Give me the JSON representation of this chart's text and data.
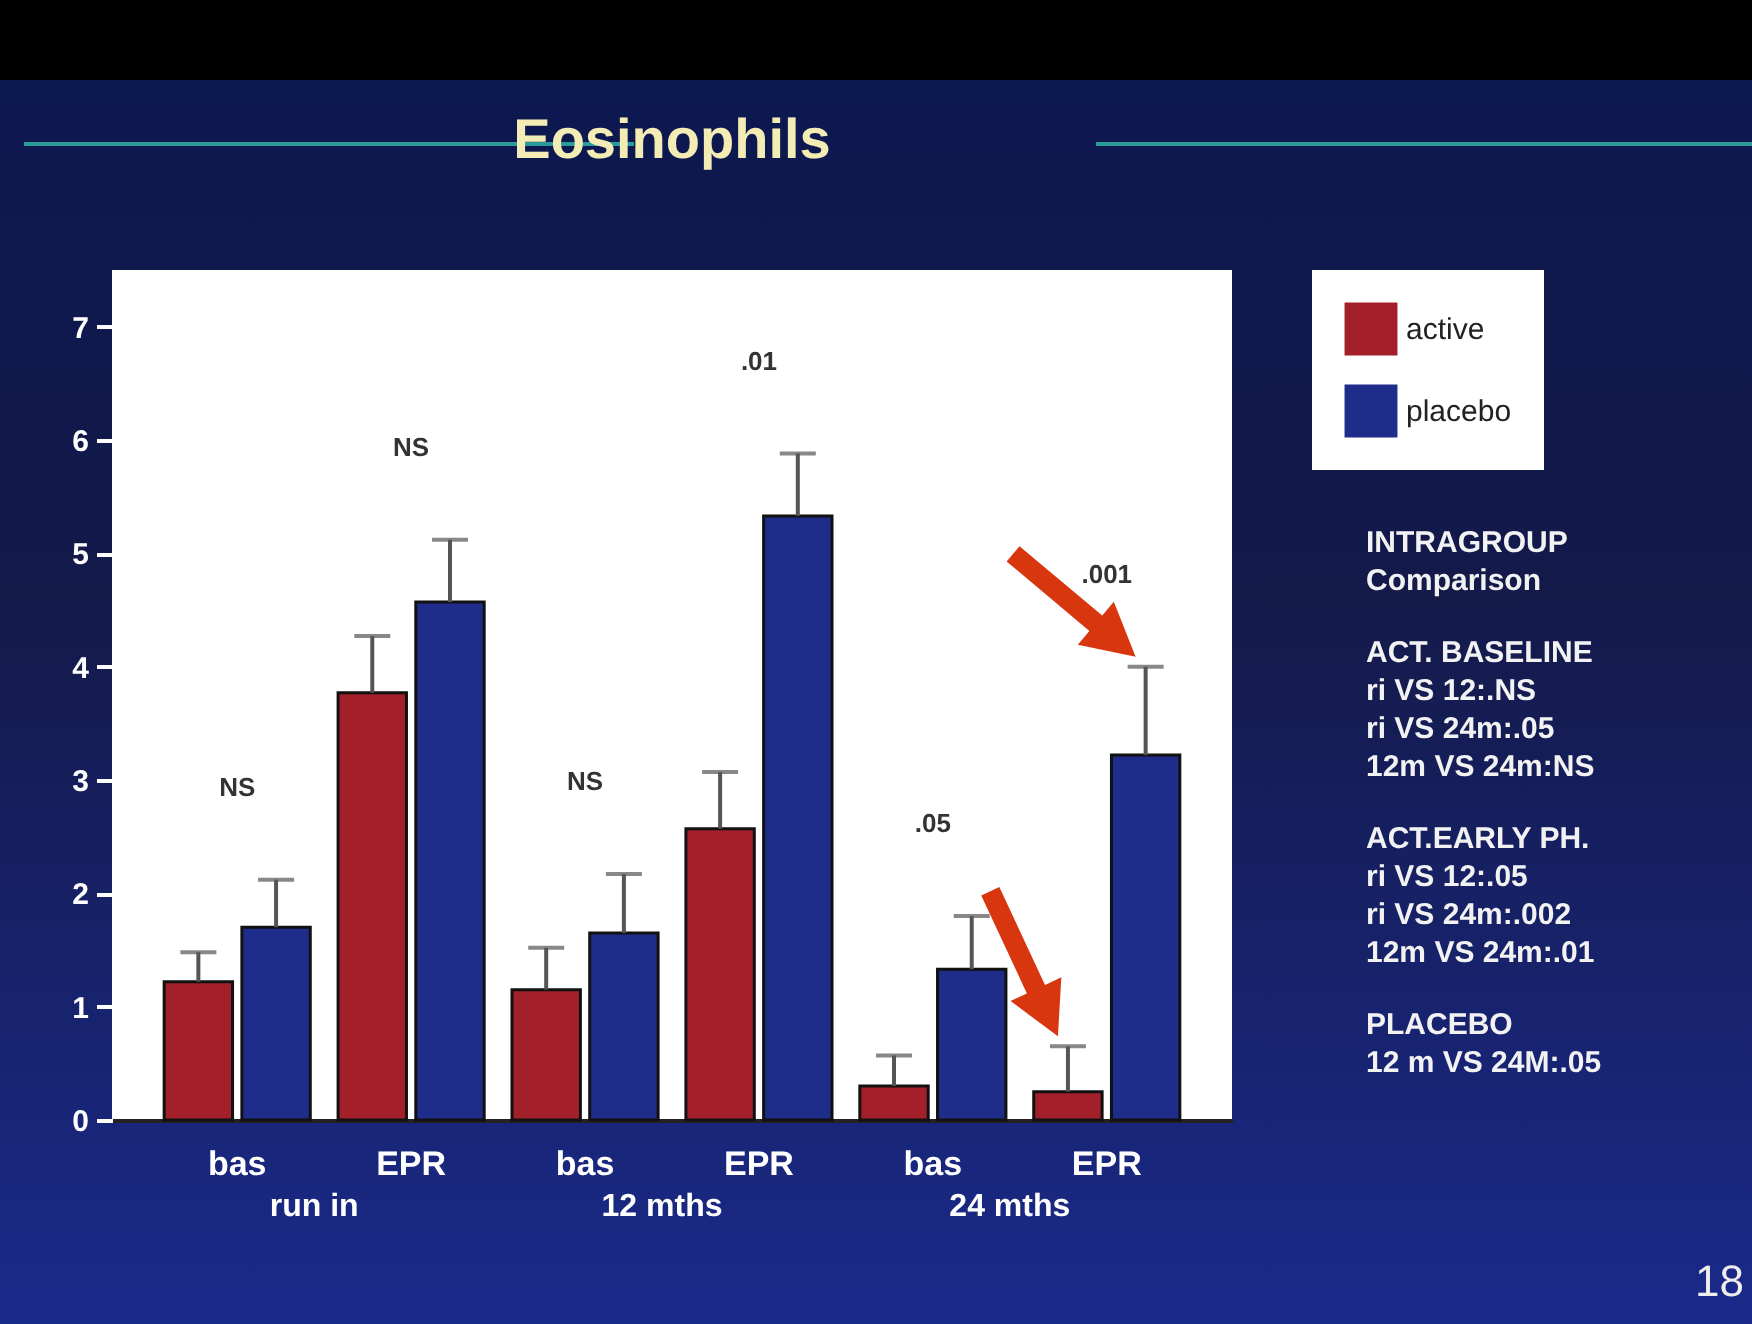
{
  "chart_data": {
    "type": "bar",
    "title": "Eosinophils",
    "categories": [
      "bas",
      "EPR",
      "bas",
      "EPR",
      "bas",
      "EPR"
    ],
    "series": [
      {
        "name": "active",
        "color": "#a3202a",
        "values": [
          1.22,
          3.77,
          1.15,
          2.57,
          0.3,
          0.25
        ],
        "errors": [
          [
            1.22,
            1.48
          ],
          [
            3.77,
            4.27
          ],
          [
            1.15,
            1.52
          ],
          [
            2.57,
            3.07
          ],
          [
            0.3,
            0.57
          ],
          [
            0.25,
            0.65
          ]
        ]
      },
      {
        "name": "placebo",
        "color": "#1f2d8a",
        "values": [
          1.7,
          4.57,
          1.65,
          5.33,
          1.33,
          3.22
        ],
        "errors": [
          [
            1.7,
            2.12
          ],
          [
            4.57,
            5.12
          ],
          [
            1.65,
            2.17
          ],
          [
            5.33,
            5.88
          ],
          [
            1.33,
            1.8
          ],
          [
            3.22,
            4.0
          ]
        ]
      }
    ],
    "ylim": [
      0,
      7.5
    ],
    "yticks": [
      0,
      1,
      2,
      3,
      4,
      5,
      6,
      7
    ],
    "grid": false,
    "legend": "top right",
    "annotations": [
      "NS",
      "NS",
      "NS",
      ".01",
      ".05",
      ".001",
      "run in",
      "12 mths",
      "24 mths",
      "INTRAGROUP\nComparison",
      "ACT. BASELINE\nri VS 12:.NS\nri VS 24m:.05\n12m VS  24m:NS",
      "ACT.EARLY PH.\nri VS 12:.05\nri VS 24m:.002\n12m VS  24m:.01",
      "PLACEBO\n12 m VS 24M:.05",
      "18"
    ]
  }
}
